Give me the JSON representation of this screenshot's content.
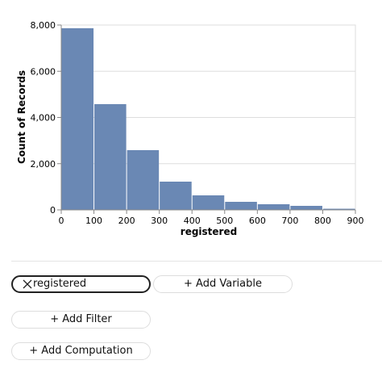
{
  "chart_data": {
    "type": "histogram",
    "x_label": "registered",
    "y_label": "Count of Records",
    "bins": [
      0,
      100,
      200,
      300,
      400,
      500,
      600,
      700,
      800,
      900
    ],
    "counts": [
      7860,
      4576,
      2585,
      1223,
      629,
      349,
      245,
      175,
      50
    ],
    "color": "#6a88b4",
    "xlim": [
      0,
      900
    ],
    "xticks": [
      0,
      100,
      200,
      300,
      400,
      500,
      600,
      700,
      800,
      900
    ],
    "ylim": [
      0,
      8000
    ],
    "yticks": [
      0,
      {
        "value": 2000,
        "label": "2,000"
      },
      {
        "value": 4000,
        "label": "4,000"
      },
      {
        "value": 6000,
        "label": "6,000"
      },
      {
        "value": 8000,
        "label": "8,000"
      }
    ],
    "grid": true
  },
  "controls": {
    "variables": [
      "registered"
    ],
    "add_variable": "+ Add Variable",
    "add_filter": "+ Add Filter",
    "add_computation": "+ Add Computation"
  }
}
